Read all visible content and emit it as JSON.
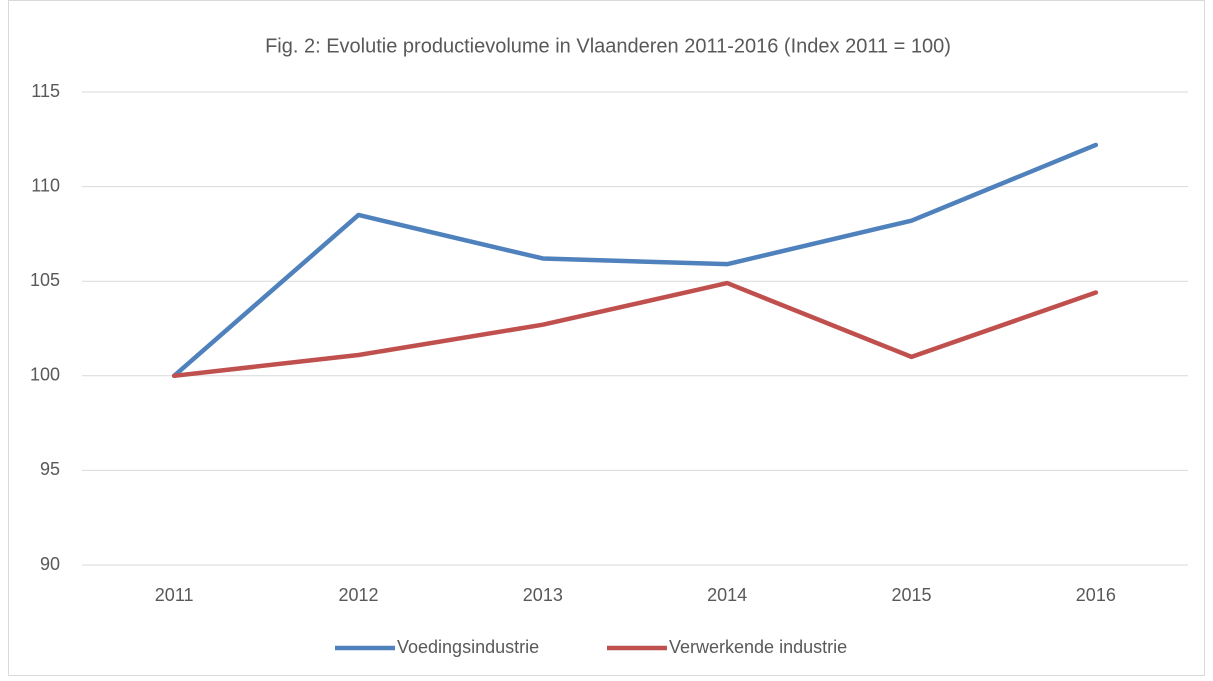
{
  "chart_data": {
    "type": "line",
    "title": "Fig. 2: Evolutie productievolume in Vlaanderen 2011-2016 (Index 2011 = 100)",
    "categories": [
      "2011",
      "2012",
      "2013",
      "2014",
      "2015",
      "2016"
    ],
    "series": [
      {
        "name": "Voedingsindustrie",
        "color": "#4f81bd",
        "values": [
          100,
          108.5,
          106.2,
          105.9,
          108.2,
          112.2
        ]
      },
      {
        "name": "Verwerkende industrie",
        "color": "#c0504d",
        "values": [
          100,
          101.1,
          102.7,
          104.9,
          101.0,
          104.4
        ]
      }
    ],
    "ylim": [
      90,
      115
    ],
    "yticks": [
      90,
      95,
      100,
      105,
      110,
      115
    ],
    "grid": true,
    "legend": "bottom"
  }
}
